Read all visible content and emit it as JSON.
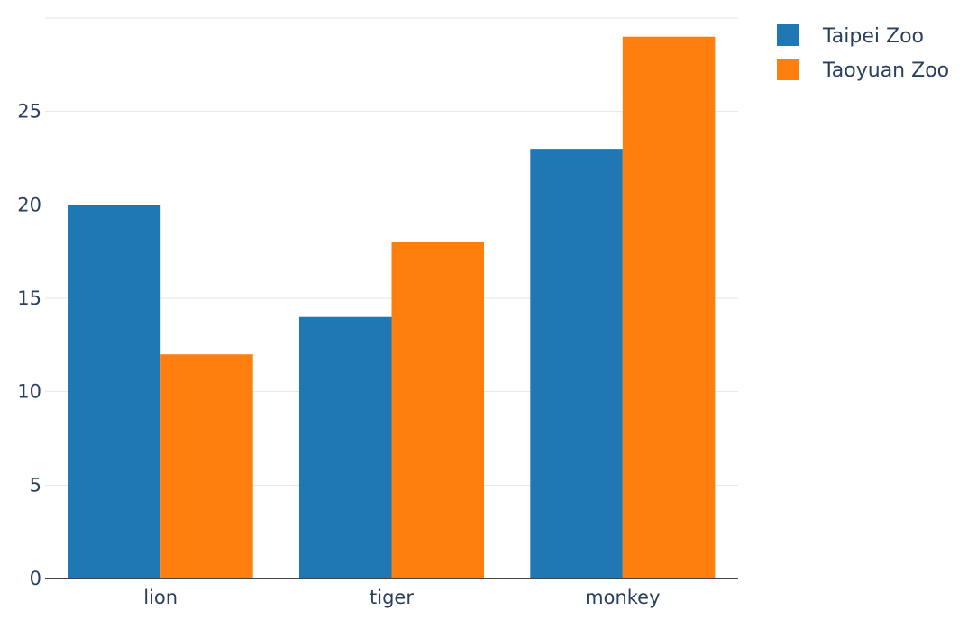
{
  "chart_data": {
    "type": "bar",
    "categories": [
      "lion",
      "tiger",
      "monkey"
    ],
    "series": [
      {
        "name": "Taipei Zoo",
        "values": [
          20,
          14,
          23
        ],
        "color": "#1f77b4"
      },
      {
        "name": "Taoyuan Zoo",
        "values": [
          12,
          18,
          29
        ],
        "color": "#ff7f0e"
      }
    ],
    "title": "",
    "xlabel": "",
    "ylabel": "",
    "ylim": [
      0,
      30
    ],
    "yticks": [
      0,
      5,
      10,
      15,
      20,
      25
    ],
    "grid": true,
    "legend_position": "top-right",
    "colors": {
      "grid": "#e6e6e6",
      "axis": "#444444",
      "text": "#2a3f5f",
      "background": "#ffffff"
    }
  }
}
